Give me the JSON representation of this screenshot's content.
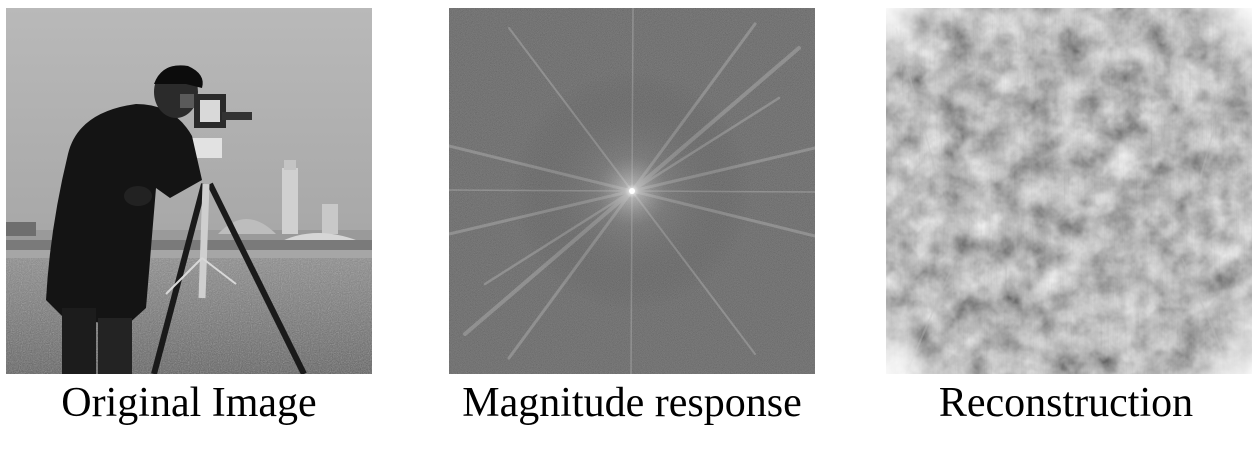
{
  "figure": {
    "panels": [
      {
        "caption": "Original Image"
      },
      {
        "caption": "Magnitude response"
      },
      {
        "caption": "Reconstruction"
      }
    ]
  }
}
